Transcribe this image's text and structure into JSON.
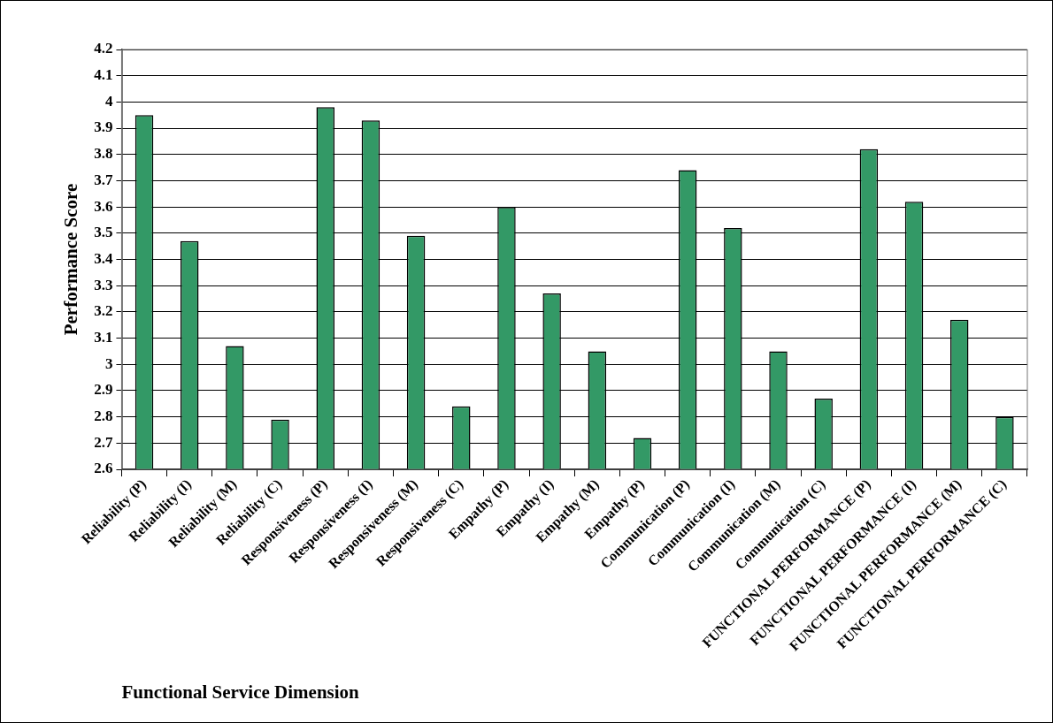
{
  "chart_data": {
    "type": "bar",
    "xlabel": "Functional Service Dimension",
    "ylabel": "Performance Score",
    "categories": [
      "Reliability (P)",
      "Reliability (I)",
      "Reliability (M)",
      "Reliability (C)",
      "Responsiveness (P)",
      "Responsiveness (I)",
      "Responsiveness (M)",
      "Responsiveness (C)",
      "Empathy (P)",
      "Empathy (I)",
      "Empathy (M)",
      "Empathy (P)",
      "Communication (P)",
      "Communication (I)",
      "Communication (M)",
      "Communication (C)",
      "FUNCTIONAL PERFORMANCE (P)",
      "FUNCTIONAL PERFORMANCE (I)",
      "FUNCTIONAL PERFORMANCE (M)",
      "FUNCTIONAL PERFORMANCE (C)"
    ],
    "values": [
      3.95,
      3.47,
      3.07,
      2.79,
      3.98,
      3.93,
      3.49,
      2.84,
      3.6,
      3.27,
      3.05,
      2.72,
      3.74,
      3.52,
      3.05,
      2.87,
      3.82,
      3.62,
      3.17,
      2.8
    ],
    "color": "#339966",
    "ylim": [
      2.6,
      4.2
    ],
    "yticks": [
      2.6,
      2.7,
      2.8,
      2.9,
      3,
      3.1,
      3.2,
      3.3,
      3.4,
      3.5,
      3.6,
      3.7,
      3.8,
      3.9,
      4,
      4.1,
      4.2
    ],
    "grid": "y",
    "legend": false
  }
}
